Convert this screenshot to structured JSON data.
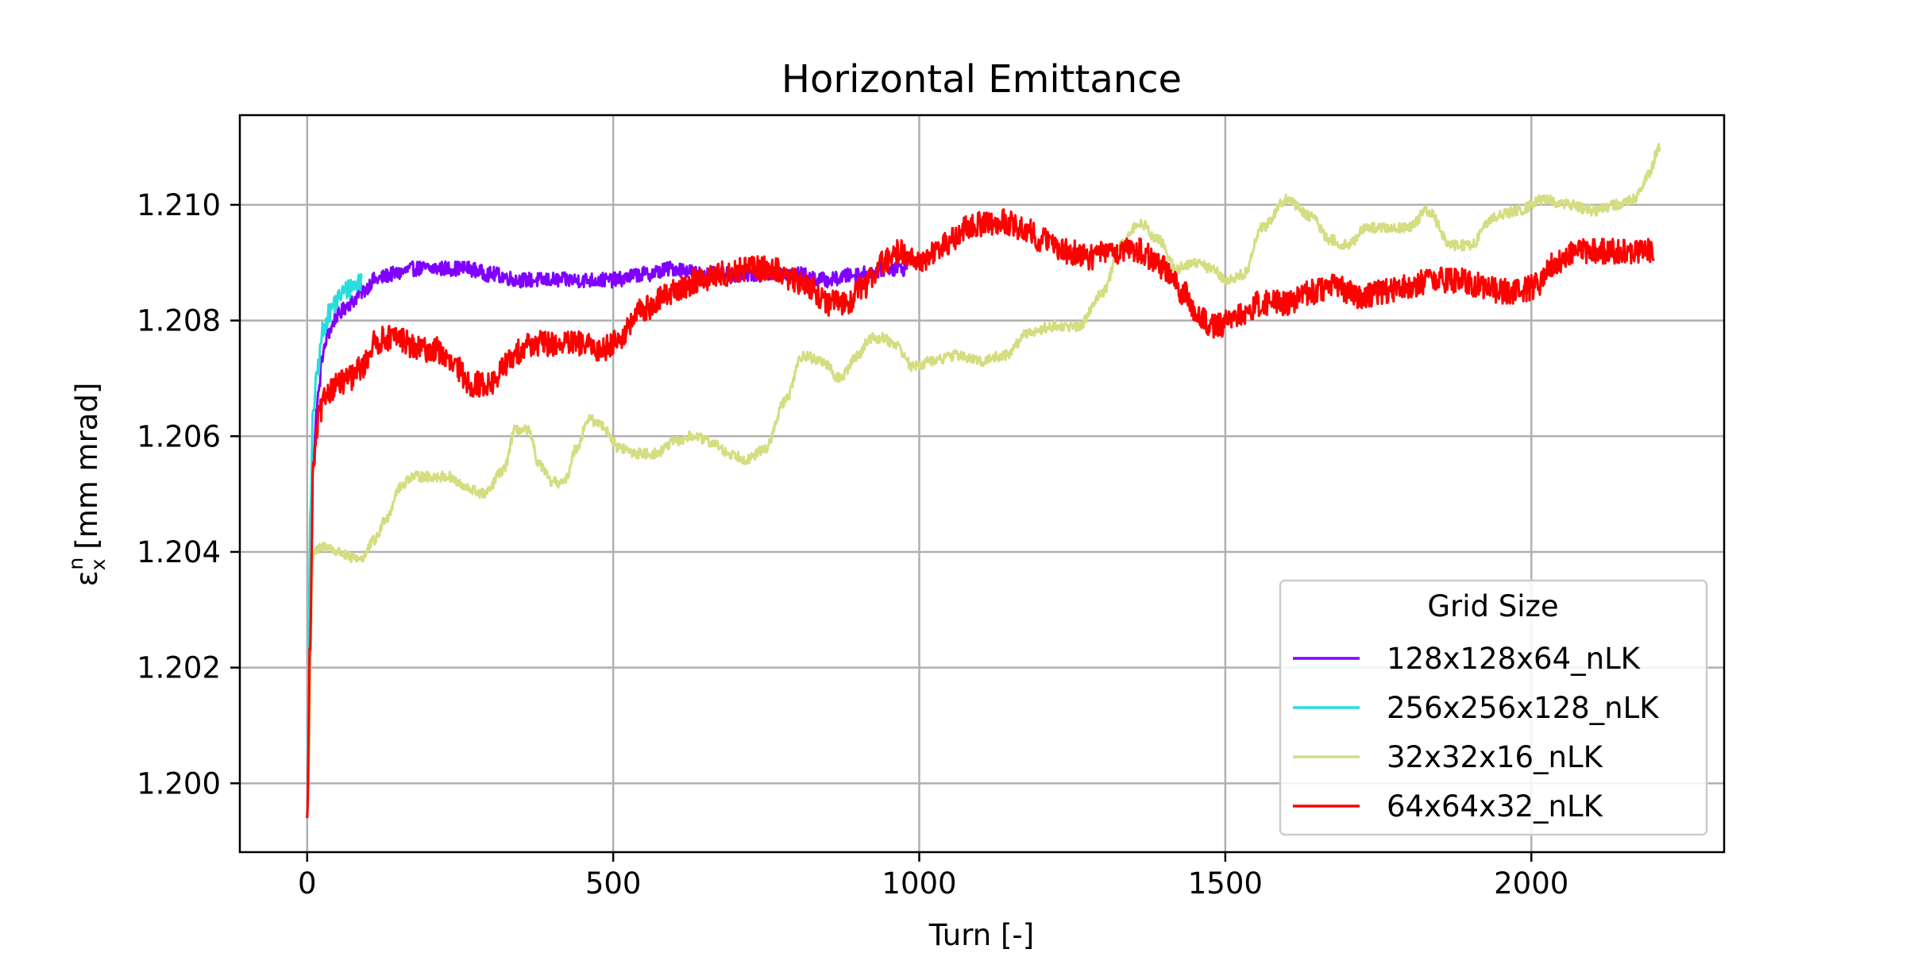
{
  "chart_data": {
    "type": "line",
    "title": "Horizontal Emittance",
    "xlabel": "Turn [-]",
    "ylabel_main": "ε",
    "ylabel_sub": "x",
    "ylabel_sup": "n",
    "ylabel_unit": "[mm mrad]",
    "xlim": [
      -110,
      2315
    ],
    "ylim": [
      1.19881,
      1.21155
    ],
    "xticks": [
      0,
      500,
      1000,
      1500,
      2000
    ],
    "yticks": [
      1.2,
      1.202,
      1.204,
      1.206,
      1.208,
      1.21
    ],
    "xtick_labels": [
      "0",
      "500",
      "1000",
      "1500",
      "2000"
    ],
    "ytick_labels": [
      "1.200",
      "1.202",
      "1.204",
      "1.206",
      "1.208",
      "1.210"
    ],
    "grid": true,
    "legend": {
      "title": "Grid Size",
      "placement": "lower-right"
    },
    "series": [
      {
        "name": "128x128x64_nLK",
        "color": "#8000ff",
        "noise": 0.00013,
        "points": [
          [
            0,
            1.1994
          ],
          [
            5,
            1.2039
          ],
          [
            10,
            1.2057
          ],
          [
            18,
            1.2067
          ],
          [
            25,
            1.2074
          ],
          [
            35,
            1.2078
          ],
          [
            50,
            1.2081
          ],
          [
            70,
            1.2083
          ],
          [
            90,
            1.2085
          ],
          [
            110,
            1.2087
          ],
          [
            140,
            1.2088
          ],
          [
            180,
            1.2089
          ],
          [
            220,
            1.2089
          ],
          [
            260,
            1.2089
          ],
          [
            300,
            1.2088
          ],
          [
            350,
            1.2087
          ],
          [
            400,
            1.2087
          ],
          [
            450,
            1.2087
          ],
          [
            500,
            1.2087
          ],
          [
            550,
            1.2088
          ],
          [
            600,
            1.2089
          ],
          [
            650,
            1.2088
          ],
          [
            700,
            1.2088
          ],
          [
            750,
            1.2088
          ],
          [
            800,
            1.2088
          ],
          [
            850,
            1.2087
          ],
          [
            900,
            1.2088
          ],
          [
            950,
            1.2089
          ],
          [
            980,
            1.2089
          ]
        ]
      },
      {
        "name": "256x256x128_nLK",
        "color": "#2adddd",
        "noise": 0.00018,
        "points": [
          [
            0,
            1.1994
          ],
          [
            5,
            1.2045
          ],
          [
            10,
            1.2065
          ],
          [
            18,
            1.2072
          ],
          [
            25,
            1.2078
          ],
          [
            35,
            1.2081
          ],
          [
            45,
            1.2083
          ],
          [
            60,
            1.2085
          ],
          [
            75,
            1.2086
          ],
          [
            90,
            1.2087
          ]
        ]
      },
      {
        "name": "32x32x16_nLK",
        "color": "#d4dd80",
        "noise": 9e-05,
        "points": [
          [
            0,
            1.1994
          ],
          [
            10,
            1.204
          ],
          [
            30,
            1.2041
          ],
          [
            50,
            1.204
          ],
          [
            70,
            1.2039
          ],
          [
            90,
            1.2039
          ],
          [
            110,
            1.2042
          ],
          [
            130,
            1.2046
          ],
          [
            150,
            1.2051
          ],
          [
            170,
            1.2053
          ],
          [
            200,
            1.2053
          ],
          [
            230,
            1.2053
          ],
          [
            260,
            1.2051
          ],
          [
            290,
            1.205
          ],
          [
            320,
            1.2054
          ],
          [
            340,
            1.2061
          ],
          [
            360,
            1.2061
          ],
          [
            380,
            1.2055
          ],
          [
            400,
            1.2052
          ],
          [
            420,
            1.2052
          ],
          [
            440,
            1.2058
          ],
          [
            460,
            1.2063
          ],
          [
            480,
            1.2062
          ],
          [
            510,
            1.2058
          ],
          [
            540,
            1.2057
          ],
          [
            570,
            1.2057
          ],
          [
            600,
            1.2059
          ],
          [
            630,
            1.206
          ],
          [
            660,
            1.2059
          ],
          [
            690,
            1.2057
          ],
          [
            720,
            1.2056
          ],
          [
            750,
            1.2058
          ],
          [
            780,
            1.2066
          ],
          [
            810,
            1.2074
          ],
          [
            840,
            1.2073
          ],
          [
            870,
            1.207
          ],
          [
            900,
            1.2074
          ],
          [
            920,
            1.2077
          ],
          [
            940,
            1.2077
          ],
          [
            960,
            1.2076
          ],
          [
            990,
            1.2072
          ],
          [
            1020,
            1.2073
          ],
          [
            1060,
            1.2074
          ],
          [
            1100,
            1.2073
          ],
          [
            1140,
            1.2074
          ],
          [
            1180,
            1.2078
          ],
          [
            1220,
            1.2079
          ],
          [
            1260,
            1.2079
          ],
          [
            1300,
            1.2085
          ],
          [
            1330,
            1.2093
          ],
          [
            1360,
            1.2097
          ],
          [
            1390,
            1.2094
          ],
          [
            1420,
            1.2089
          ],
          [
            1450,
            1.209
          ],
          [
            1480,
            1.2089
          ],
          [
            1500,
            1.2087
          ],
          [
            1530,
            1.2088
          ],
          [
            1560,
            1.2096
          ],
          [
            1600,
            1.2101
          ],
          [
            1640,
            1.2098
          ],
          [
            1670,
            1.2094
          ],
          [
            1700,
            1.2093
          ],
          [
            1730,
            1.2096
          ],
          [
            1760,
            1.2096
          ],
          [
            1800,
            1.2096
          ],
          [
            1830,
            1.2099
          ],
          [
            1870,
            1.2093
          ],
          [
            1900,
            1.2093
          ],
          [
            1940,
            1.2098
          ],
          [
            1980,
            1.2099
          ],
          [
            2020,
            1.2101
          ],
          [
            2060,
            1.21
          ],
          [
            2100,
            1.2099
          ],
          [
            2140,
            1.21
          ],
          [
            2170,
            1.2101
          ],
          [
            2190,
            1.2105
          ],
          [
            2210,
            1.211
          ]
        ]
      },
      {
        "name": "64x64x32_nLK",
        "color": "#ff0000",
        "noise": 0.00022,
        "points": [
          [
            0,
            1.1994
          ],
          [
            5,
            1.2025
          ],
          [
            10,
            1.2055
          ],
          [
            20,
            1.2064
          ],
          [
            35,
            1.2068
          ],
          [
            50,
            1.2069
          ],
          [
            70,
            1.207
          ],
          [
            90,
            1.2072
          ],
          [
            110,
            1.2076
          ],
          [
            130,
            1.2077
          ],
          [
            150,
            1.2077
          ],
          [
            180,
            1.2075
          ],
          [
            210,
            1.2075
          ],
          [
            240,
            1.2072
          ],
          [
            270,
            1.2069
          ],
          [
            300,
            1.2069
          ],
          [
            330,
            1.2073
          ],
          [
            360,
            1.2076
          ],
          [
            400,
            1.2076
          ],
          [
            440,
            1.2076
          ],
          [
            480,
            1.2075
          ],
          [
            510,
            1.2077
          ],
          [
            550,
            1.2082
          ],
          [
            600,
            1.2085
          ],
          [
            640,
            1.2087
          ],
          [
            680,
            1.2088
          ],
          [
            720,
            1.2089
          ],
          [
            760,
            1.2089
          ],
          [
            790,
            1.2087
          ],
          [
            820,
            1.2086
          ],
          [
            850,
            1.2083
          ],
          [
            880,
            1.2083
          ],
          [
            910,
            1.2086
          ],
          [
            940,
            1.209
          ],
          [
            970,
            1.2092
          ],
          [
            1000,
            1.209
          ],
          [
            1040,
            1.2093
          ],
          [
            1080,
            1.2096
          ],
          [
            1110,
            1.2097
          ],
          [
            1140,
            1.2097
          ],
          [
            1170,
            1.2096
          ],
          [
            1200,
            1.2094
          ],
          [
            1240,
            1.2092
          ],
          [
            1280,
            1.2091
          ],
          [
            1320,
            1.2092
          ],
          [
            1360,
            1.2092
          ],
          [
            1400,
            1.2089
          ],
          [
            1430,
            1.2085
          ],
          [
            1460,
            1.208
          ],
          [
            1490,
            1.2079
          ],
          [
            1520,
            1.2081
          ],
          [
            1560,
            1.2083
          ],
          [
            1600,
            1.2083
          ],
          [
            1640,
            1.2085
          ],
          [
            1680,
            1.2086
          ],
          [
            1720,
            1.2084
          ],
          [
            1760,
            1.2085
          ],
          [
            1800,
            1.2086
          ],
          [
            1840,
            1.2087
          ],
          [
            1880,
            1.2087
          ],
          [
            1920,
            1.2086
          ],
          [
            1950,
            1.2085
          ],
          [
            1980,
            1.2085
          ],
          [
            2010,
            1.2086
          ],
          [
            2040,
            1.209
          ],
          [
            2080,
            1.2092
          ],
          [
            2110,
            1.2092
          ],
          [
            2140,
            1.2092
          ],
          [
            2170,
            1.2092
          ],
          [
            2200,
            1.2092
          ]
        ]
      }
    ]
  }
}
